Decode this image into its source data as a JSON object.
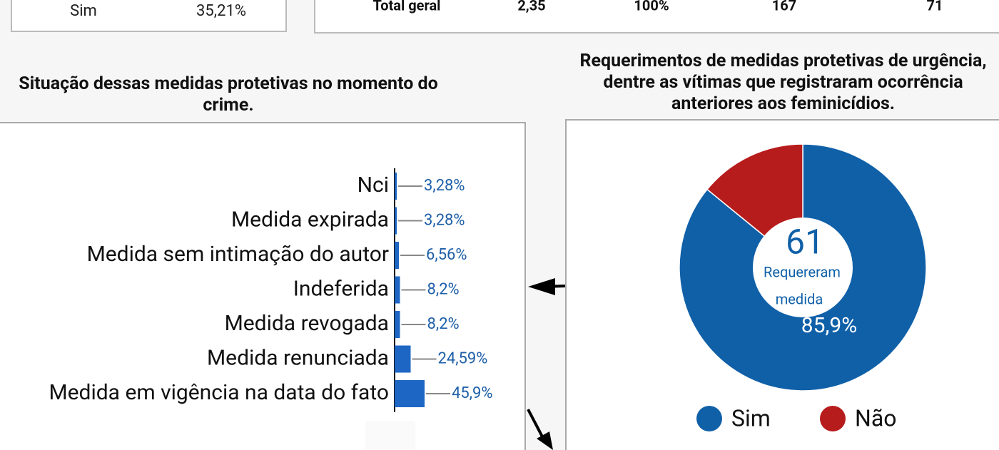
{
  "top_left": {
    "label": "Sim",
    "value": "35,21%"
  },
  "top_table": {
    "row": [
      "Total geral",
      "2,35",
      "100%",
      "167",
      "71"
    ]
  },
  "chart_data": [
    {
      "type": "bar",
      "orientation": "horizontal",
      "title": "Situação dessas medidas protetivas no momento do crime.",
      "categories": [
        "Nci",
        "Medida expirada",
        "Medida sem intimação do autor",
        "Indeferida",
        "Medida revogada",
        "Medida renunciada",
        "Medida em vigência na data do fato"
      ],
      "values": [
        3.28,
        3.28,
        6.56,
        8.2,
        8.2,
        24.59,
        45.9
      ],
      "value_labels": [
        "3,28%",
        "3,28%",
        "6,56%",
        "8,2%",
        "8,2%",
        "24,59%",
        "45,9%"
      ],
      "color": "#1e66c4"
    },
    {
      "type": "pie",
      "title": "Requerimentos de medidas protetivas de urgência, dentre as vítimas que registraram ocorrência anteriores aos feminicídios.",
      "categories": [
        "Sim",
        "Não"
      ],
      "values": [
        85.9,
        14.1
      ],
      "value_labels": [
        "85,9%",
        null
      ],
      "colors": [
        "#1060a8",
        "#b71c1c"
      ],
      "center_value": 61,
      "center_label_lines": [
        "Requereram",
        "medida"
      ],
      "legend": "bottom"
    }
  ]
}
